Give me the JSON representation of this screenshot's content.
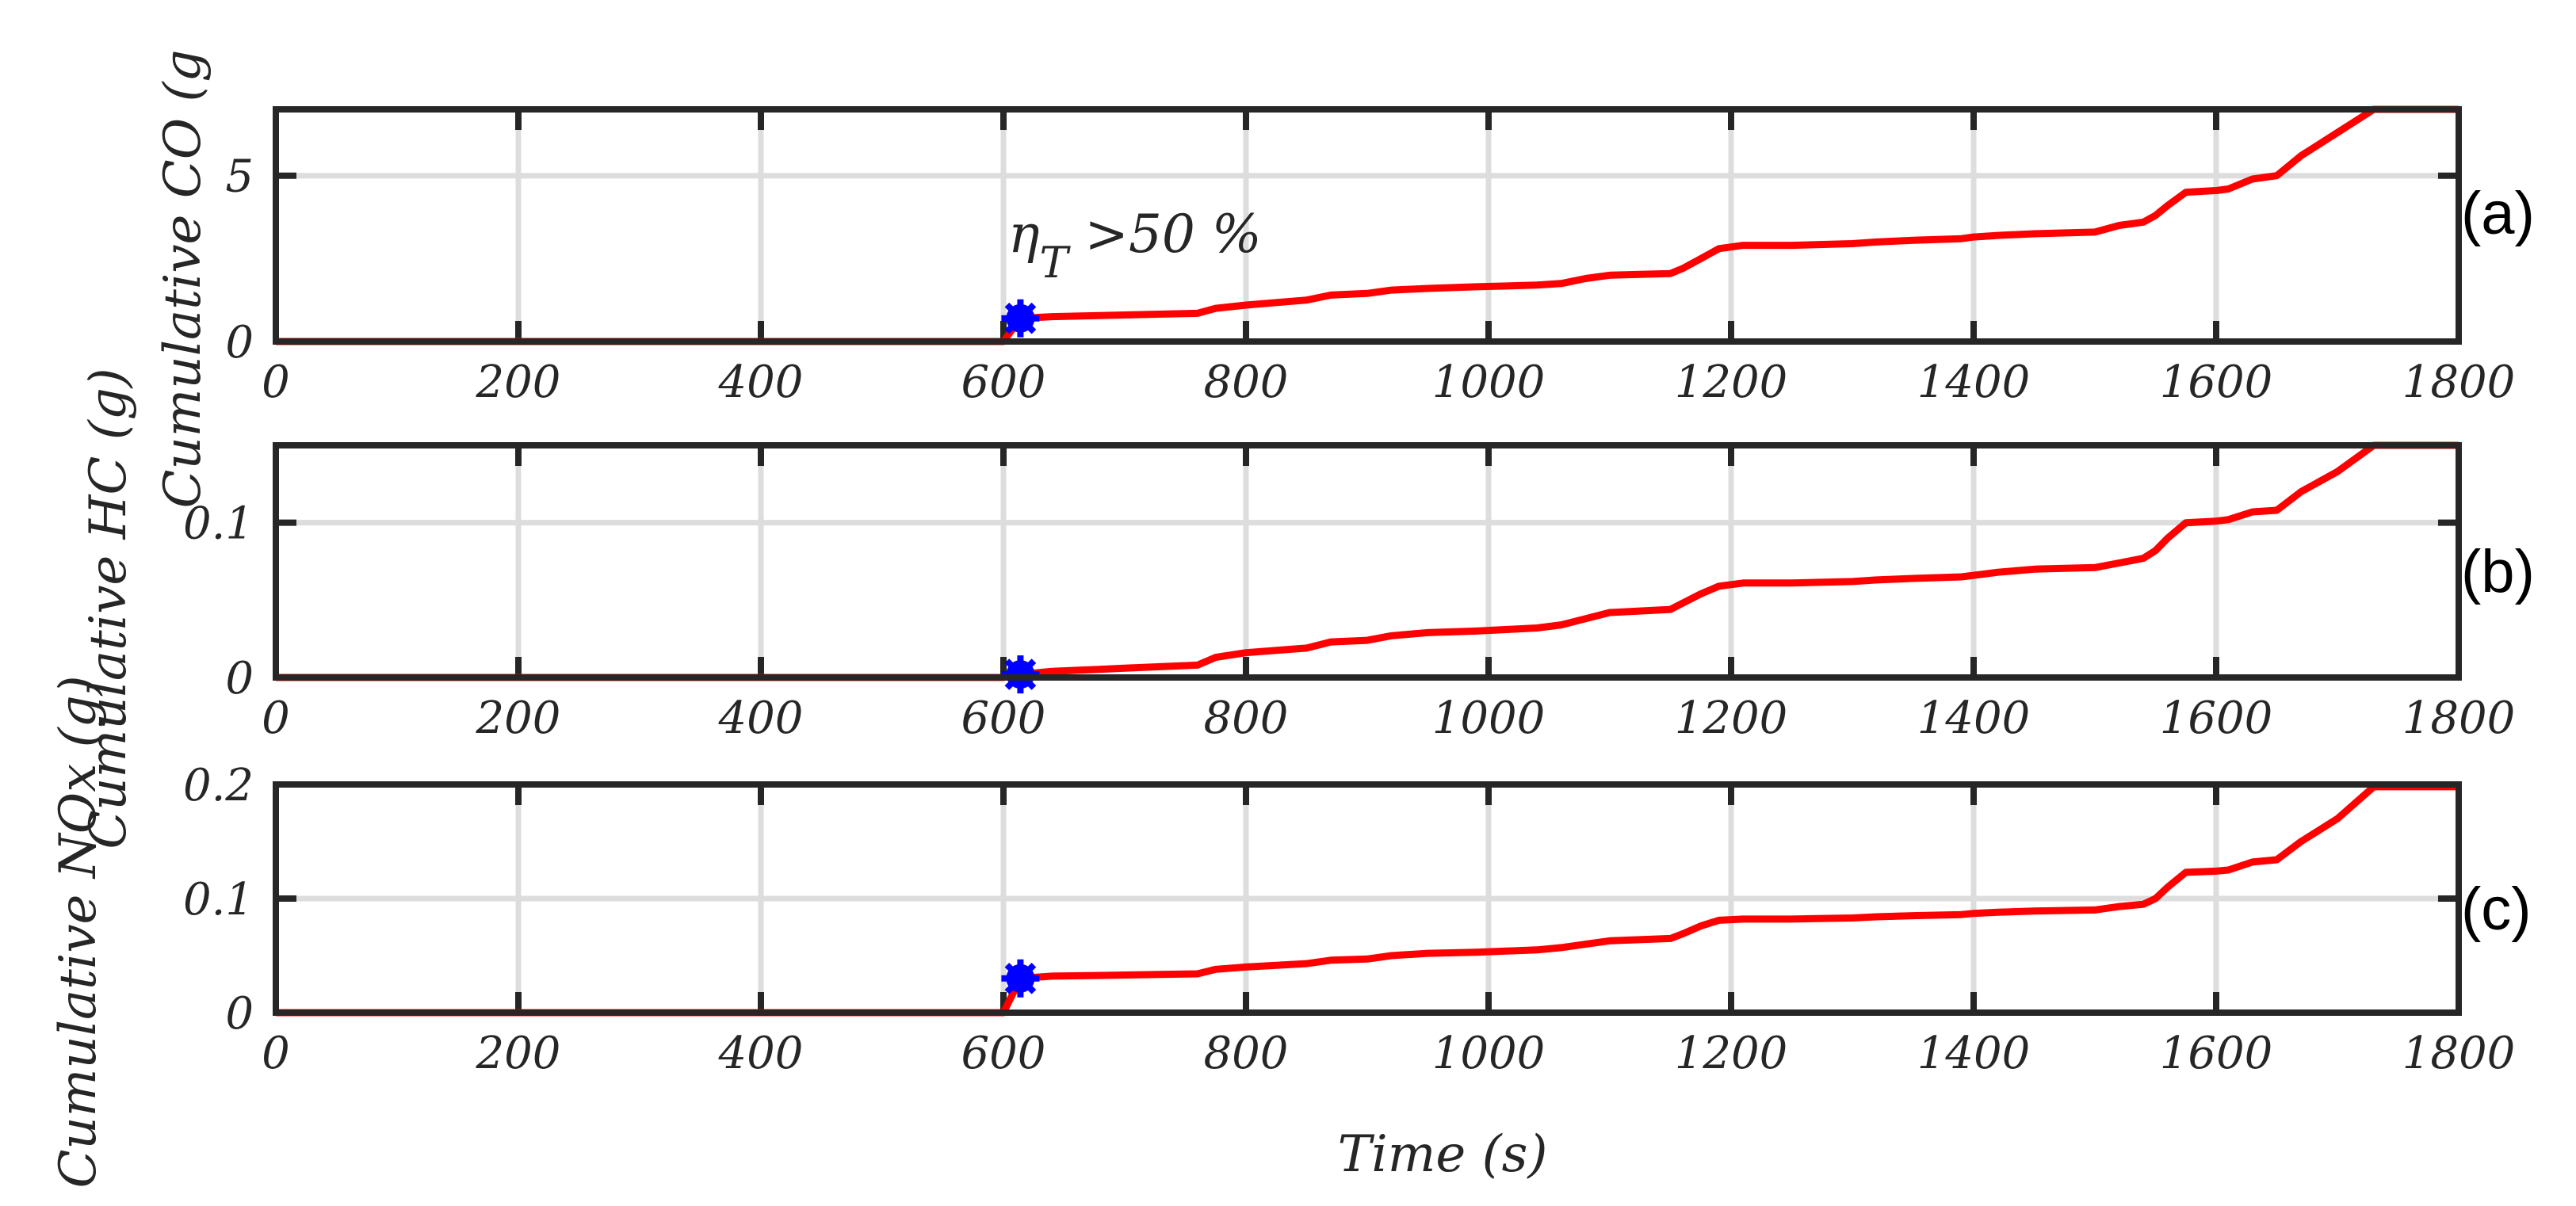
{
  "figure": {
    "xlabel": "Time (s)",
    "annotation": {
      "symbol": "η",
      "subscript": "T",
      "text": " >50 %"
    }
  },
  "chart_data": [
    {
      "type": "line",
      "panel_label": "(a)",
      "ylabel": "Cumulative CO (g",
      "xlim": [
        0,
        1800
      ],
      "ylim": [
        0,
        7
      ],
      "xticks": [
        0,
        200,
        400,
        600,
        800,
        1000,
        1200,
        1400,
        1600,
        1800
      ],
      "yticks": [
        0,
        5
      ],
      "grid": true,
      "series": [
        {
          "name": "Cumulative CO",
          "color": "#ff0000",
          "x": [
            0,
            600,
            614,
            640,
            700,
            760,
            775,
            800,
            850,
            870,
            900,
            920,
            950,
            990,
            1040,
            1060,
            1080,
            1100,
            1150,
            1160,
            1175,
            1190,
            1210,
            1250,
            1300,
            1320,
            1350,
            1390,
            1400,
            1420,
            1450,
            1500,
            1520,
            1540,
            1550,
            1560,
            1575,
            1600,
            1610,
            1630,
            1650,
            1670,
            1700,
            1730,
            1800
          ],
          "y": [
            0,
            0,
            0.7,
            0.75,
            0.8,
            0.85,
            1.0,
            1.1,
            1.25,
            1.4,
            1.45,
            1.55,
            1.6,
            1.65,
            1.7,
            1.75,
            1.9,
            2.0,
            2.05,
            2.2,
            2.5,
            2.8,
            2.9,
            2.9,
            2.95,
            3.0,
            3.05,
            3.1,
            3.15,
            3.2,
            3.25,
            3.3,
            3.5,
            3.6,
            3.8,
            4.1,
            4.5,
            4.55,
            4.6,
            4.9,
            5.0,
            5.6,
            6.3,
            7.0,
            7.0
          ]
        }
      ],
      "marker": {
        "x": 614,
        "y": 0.7,
        "color": "#0000ff"
      }
    },
    {
      "type": "line",
      "panel_label": "(b)",
      "ylabel": "Cumulative HC (g)",
      "xlim": [
        0,
        1800
      ],
      "ylim": [
        0,
        0.15
      ],
      "xticks": [
        0,
        200,
        400,
        600,
        800,
        1000,
        1200,
        1400,
        1600,
        1800
      ],
      "yticks": [
        0,
        0.1
      ],
      "ytick_labels": [
        "0",
        "0.1"
      ],
      "grid": true,
      "series": [
        {
          "name": "Cumulative HC",
          "color": "#ff0000",
          "x": [
            0,
            600,
            614,
            640,
            700,
            760,
            775,
            800,
            850,
            870,
            900,
            920,
            950,
            990,
            1040,
            1060,
            1080,
            1100,
            1150,
            1160,
            1175,
            1190,
            1210,
            1250,
            1300,
            1320,
            1350,
            1390,
            1400,
            1420,
            1450,
            1500,
            1520,
            1540,
            1550,
            1560,
            1575,
            1600,
            1610,
            1630,
            1650,
            1670,
            1700,
            1730,
            1800
          ],
          "y": [
            0,
            0,
            0.002,
            0.004,
            0.006,
            0.008,
            0.013,
            0.016,
            0.019,
            0.023,
            0.024,
            0.027,
            0.029,
            0.03,
            0.032,
            0.034,
            0.038,
            0.042,
            0.044,
            0.048,
            0.054,
            0.059,
            0.061,
            0.061,
            0.062,
            0.063,
            0.064,
            0.065,
            0.066,
            0.068,
            0.07,
            0.071,
            0.074,
            0.077,
            0.082,
            0.09,
            0.1,
            0.101,
            0.102,
            0.107,
            0.108,
            0.12,
            0.133,
            0.15,
            0.15
          ]
        }
      ],
      "marker": {
        "x": 614,
        "y": 0.002,
        "color": "#0000ff"
      }
    },
    {
      "type": "line",
      "panel_label": "(c)",
      "ylabel": "Cumulative NOx (g)",
      "xlim": [
        0,
        1800
      ],
      "ylim": [
        0,
        0.2
      ],
      "xticks": [
        0,
        200,
        400,
        600,
        800,
        1000,
        1200,
        1400,
        1600,
        1800
      ],
      "yticks": [
        0,
        0.1,
        0.2
      ],
      "ytick_labels": [
        "0",
        "0.1",
        "0.2"
      ],
      "grid": true,
      "series": [
        {
          "name": "Cumulative NOx",
          "color": "#ff0000",
          "x": [
            0,
            600,
            614,
            640,
            700,
            760,
            775,
            800,
            850,
            870,
            900,
            920,
            950,
            990,
            1040,
            1060,
            1080,
            1100,
            1150,
            1160,
            1175,
            1190,
            1210,
            1250,
            1300,
            1320,
            1350,
            1390,
            1400,
            1420,
            1450,
            1500,
            1520,
            1540,
            1550,
            1560,
            1575,
            1600,
            1610,
            1630,
            1650,
            1670,
            1700,
            1730,
            1800
          ],
          "y": [
            0,
            0,
            0.03,
            0.032,
            0.033,
            0.034,
            0.038,
            0.04,
            0.043,
            0.046,
            0.047,
            0.05,
            0.052,
            0.053,
            0.055,
            0.057,
            0.06,
            0.063,
            0.065,
            0.069,
            0.076,
            0.081,
            0.082,
            0.082,
            0.083,
            0.084,
            0.085,
            0.086,
            0.087,
            0.088,
            0.089,
            0.09,
            0.093,
            0.095,
            0.1,
            0.11,
            0.123,
            0.124,
            0.125,
            0.132,
            0.134,
            0.15,
            0.17,
            0.198,
            0.198
          ]
        }
      ],
      "marker": {
        "x": 614,
        "y": 0.03,
        "color": "#0000ff"
      }
    }
  ]
}
